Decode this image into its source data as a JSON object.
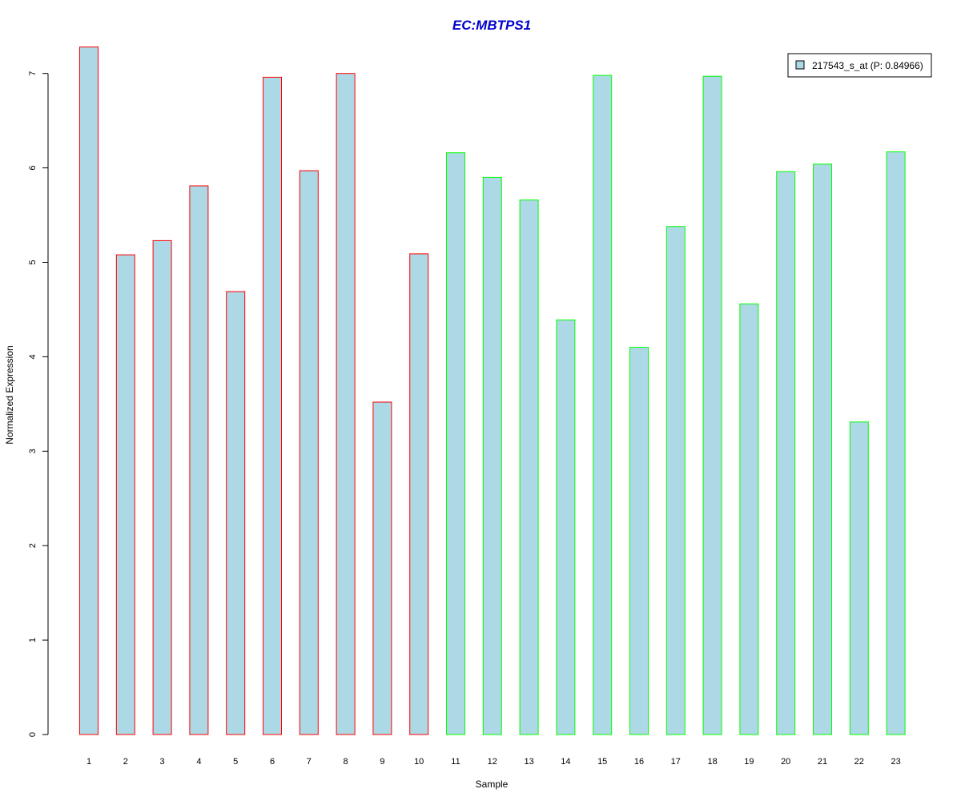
{
  "chart_data": {
    "type": "bar",
    "title": "EC:MBTPS1",
    "title_color": "#0000cc",
    "xlabel": "Sample",
    "ylabel": "Normalized Expression",
    "ylim": [
      0,
      7.3
    ],
    "yticks": [
      "0",
      "1",
      "2",
      "3",
      "4",
      "5",
      "6",
      "7"
    ],
    "grid": false,
    "legend_position": "top-right",
    "categories": [
      "1",
      "2",
      "3",
      "4",
      "5",
      "6",
      "7",
      "8",
      "9",
      "10",
      "11",
      "12",
      "13",
      "14",
      "15",
      "16",
      "17",
      "18",
      "19",
      "20",
      "21",
      "22",
      "23"
    ],
    "series": [
      {
        "name": "217543_s_at (P: 0.84966)",
        "fill_color": "#add8e6",
        "values": [
          7.28,
          5.08,
          5.23,
          5.81,
          4.69,
          6.96,
          5.97,
          7.0,
          3.52,
          5.09,
          6.16,
          5.9,
          5.66,
          4.39,
          6.98,
          4.1,
          5.38,
          6.97,
          4.56,
          5.96,
          6.04,
          3.31,
          6.17
        ]
      }
    ],
    "border_colors": [
      "#ff0000",
      "#ff0000",
      "#ff0000",
      "#ff0000",
      "#ff0000",
      "#ff0000",
      "#ff0000",
      "#ff0000",
      "#ff0000",
      "#ff0000",
      "#00ff00",
      "#00ff00",
      "#00ff00",
      "#00ff00",
      "#00ff00",
      "#00ff00",
      "#00ff00",
      "#00ff00",
      "#00ff00",
      "#00ff00",
      "#00ff00",
      "#00ff00",
      "#00ff00"
    ]
  }
}
